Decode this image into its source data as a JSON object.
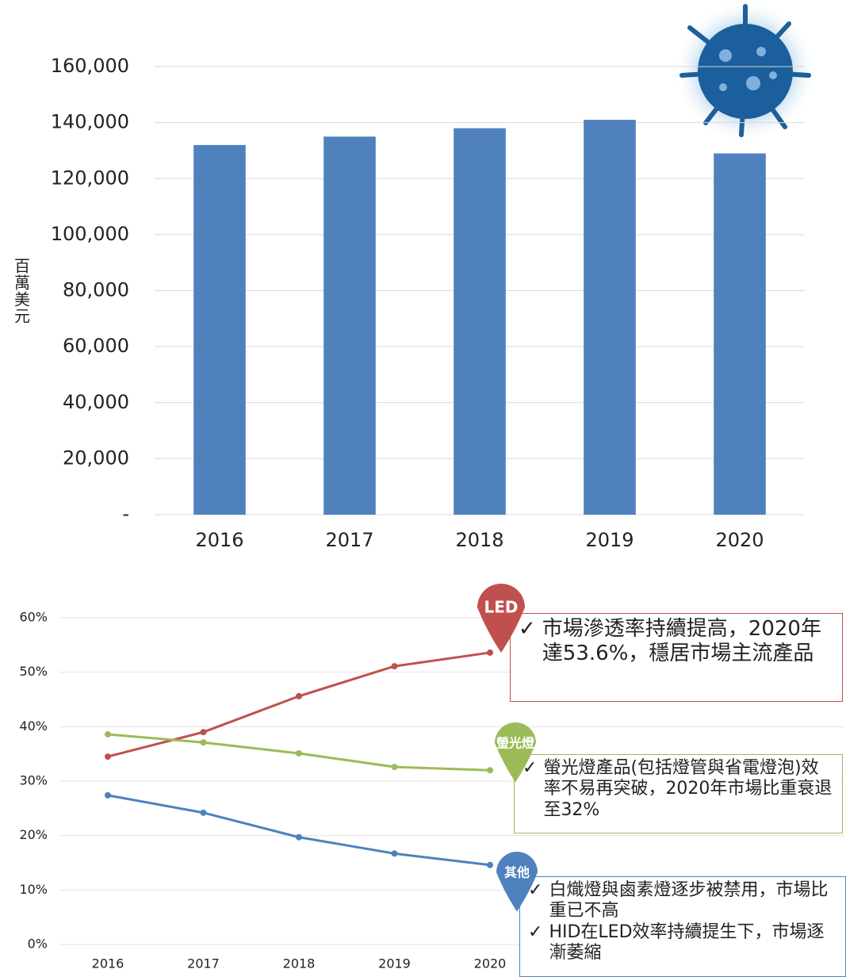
{
  "chart_data": [
    {
      "type": "bar",
      "y_label": "百萬美元",
      "categories": [
        "2016",
        "2017",
        "2018",
        "2019",
        "2020"
      ],
      "values": [
        132000,
        135000,
        138000,
        141000,
        129000
      ],
      "color": "#4f81bd",
      "ylim": [
        0,
        160000
      ],
      "yticks": [
        {
          "value": 0,
          "label": "-"
        },
        {
          "value": 20000,
          "label": "20,000"
        },
        {
          "value": 40000,
          "label": "40,000"
        },
        {
          "value": 60000,
          "label": "60,000"
        },
        {
          "value": 80000,
          "label": "80,000"
        },
        {
          "value": 100000,
          "label": "100,000"
        },
        {
          "value": 120000,
          "label": "120,000"
        },
        {
          "value": 140000,
          "label": "140,000"
        },
        {
          "value": 160000,
          "label": "160,000"
        }
      ],
      "grid": true
    },
    {
      "type": "line",
      "categories": [
        "2016",
        "2017",
        "2018",
        "2019",
        "2020"
      ],
      "series": [
        {
          "name": "LED",
          "color": "#c0504d",
          "values": [
            34.5,
            39,
            45.6,
            51.1,
            53.6
          ]
        },
        {
          "name": "螢光燈",
          "color": "#9bbb59",
          "values": [
            38.6,
            37.1,
            35.1,
            32.6,
            32
          ]
        },
        {
          "name": "其他",
          "color": "#4f81bd",
          "values": [
            27.4,
            24.2,
            19.7,
            16.7,
            14.6
          ]
        }
      ],
      "ylim": [
        0,
        60
      ],
      "yticks": [
        {
          "value": 0,
          "label": "0%"
        },
        {
          "value": 10,
          "label": "10%"
        },
        {
          "value": 20,
          "label": "20%"
        },
        {
          "value": 30,
          "label": "30%"
        },
        {
          "value": 40,
          "label": "40%"
        },
        {
          "value": 50,
          "label": "50%"
        },
        {
          "value": 60,
          "label": "60%"
        }
      ],
      "grid": true,
      "bullet": "✓",
      "callouts": [
        {
          "items": [
            "市場滲透率持續提高，2020年達53.6%，穩居市場主流產品"
          ]
        },
        {
          "items": [
            "螢光燈產品(包括燈管與省電燈泡)效率不易再突破，2020年市場比重衰退至32%"
          ]
        },
        {
          "items": [
            "白熾燈與鹵素燈逐步被禁用，市場比重已不高",
            "HID在LED效率持續提生下，市場逐漸萎縮"
          ]
        }
      ]
    }
  ]
}
